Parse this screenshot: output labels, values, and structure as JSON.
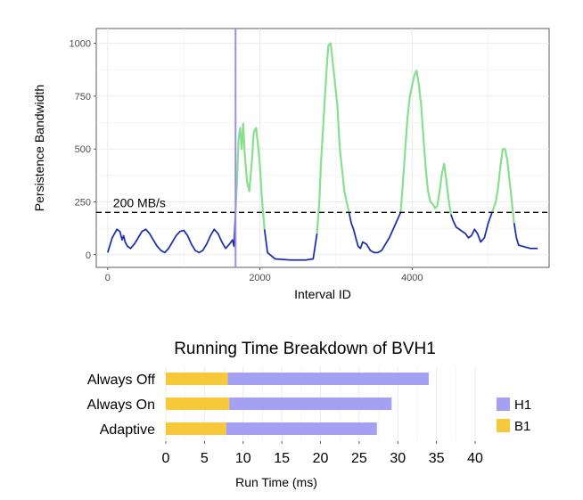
{
  "colors": {
    "low": "#2b1bc4",
    "high": "#86e08e",
    "marker": "#9b8cf0",
    "h1": "#a4a0f3",
    "b1": "#f7c93a"
  },
  "chart_data": [
    {
      "type": "line",
      "title": "",
      "xlabel": "Interval ID",
      "ylabel": "Persistence Bandwidth",
      "xlim": [
        -150,
        5800
      ],
      "ylim": [
        -60,
        1070
      ],
      "xticks": [
        0,
        2000,
        4000
      ],
      "yticks": [
        0,
        250,
        500,
        750,
        1000
      ],
      "threshold": {
        "value": 200,
        "label": "200 MB/s"
      },
      "vertical_marker": 1680,
      "grid": true,
      "series": [
        {
          "x": [
            0,
            60,
            120,
            160,
            190,
            210,
            230,
            260,
            300,
            350,
            400,
            450,
            500,
            550,
            600,
            650,
            700,
            750,
            800,
            850,
            900,
            950,
            1000,
            1050,
            1100,
            1150,
            1200,
            1250,
            1300,
            1350,
            1400,
            1450,
            1500,
            1550,
            1600,
            1640,
            1660,
            1680,
            1700,
            1720,
            1740,
            1760,
            1780,
            1800,
            1830,
            1860,
            1890,
            1920,
            1950,
            1980,
            2000,
            2030,
            2060,
            2100,
            2200,
            2400,
            2600,
            2700,
            2750,
            2780,
            2800,
            2830,
            2860,
            2880,
            2900,
            2930,
            2960,
            2990,
            3020,
            3050,
            3080,
            3110,
            3140,
            3170,
            3200,
            3230,
            3260,
            3290,
            3320,
            3350,
            3400,
            3450,
            3500,
            3550,
            3600,
            3650,
            3700,
            3750,
            3800,
            3850,
            3880,
            3910,
            3940,
            3970,
            4000,
            4030,
            4060,
            4090,
            4120,
            4150,
            4180,
            4210,
            4240,
            4270,
            4300,
            4330,
            4360,
            4390,
            4420,
            4450,
            4480,
            4510,
            4540,
            4580,
            4620,
            4660,
            4700,
            4740,
            4780,
            4820,
            4860,
            4900,
            4950,
            5000,
            5050,
            5100,
            5130,
            5160,
            5190,
            5220,
            5250,
            5280,
            5310,
            5340,
            5370,
            5400,
            5450,
            5500,
            5550,
            5600,
            5650
          ],
          "y": [
            10,
            80,
            120,
            110,
            70,
            90,
            60,
            40,
            30,
            50,
            80,
            110,
            120,
            100,
            70,
            40,
            20,
            10,
            30,
            60,
            90,
            110,
            115,
            90,
            50,
            20,
            10,
            20,
            50,
            90,
            120,
            100,
            60,
            30,
            50,
            70,
            40,
            200,
            350,
            550,
            600,
            500,
            620,
            480,
            350,
            300,
            420,
            580,
            600,
            500,
            420,
            250,
            120,
            10,
            -20,
            -25,
            -25,
            -20,
            100,
            250,
            420,
            600,
            780,
            900,
            990,
            1000,
            900,
            800,
            700,
            500,
            400,
            300,
            250,
            200,
            150,
            120,
            80,
            40,
            30,
            60,
            50,
            20,
            10,
            10,
            20,
            50,
            80,
            120,
            160,
            200,
            350,
            500,
            650,
            750,
            800,
            850,
            870,
            800,
            700,
            550,
            400,
            300,
            250,
            240,
            220,
            230,
            300,
            380,
            430,
            350,
            260,
            190,
            160,
            130,
            120,
            110,
            100,
            80,
            90,
            120,
            100,
            60,
            80,
            150,
            200,
            250,
            320,
            420,
            500,
            500,
            450,
            350,
            250,
            150,
            80,
            45,
            40,
            35,
            30,
            30,
            30
          ]
        }
      ]
    },
    {
      "type": "bar",
      "orientation": "horizontal",
      "stacked": true,
      "title": "Running Time Breakdown of BVH1",
      "xlabel": "Run Time (ms)",
      "ylabel": "",
      "xlim": [
        0,
        40
      ],
      "xticks": [
        0,
        5,
        10,
        15,
        20,
        25,
        30,
        35,
        40
      ],
      "categories": [
        "Always Off",
        "Always On",
        "Adaptive"
      ],
      "series": [
        {
          "name": "B1",
          "values": [
            8,
            8.2,
            7.8
          ]
        },
        {
          "name": "H1",
          "values": [
            26,
            21,
            19.5
          ]
        }
      ],
      "legend": {
        "placement": "right",
        "entries": [
          "H1",
          "B1"
        ]
      },
      "grid": true
    }
  ]
}
